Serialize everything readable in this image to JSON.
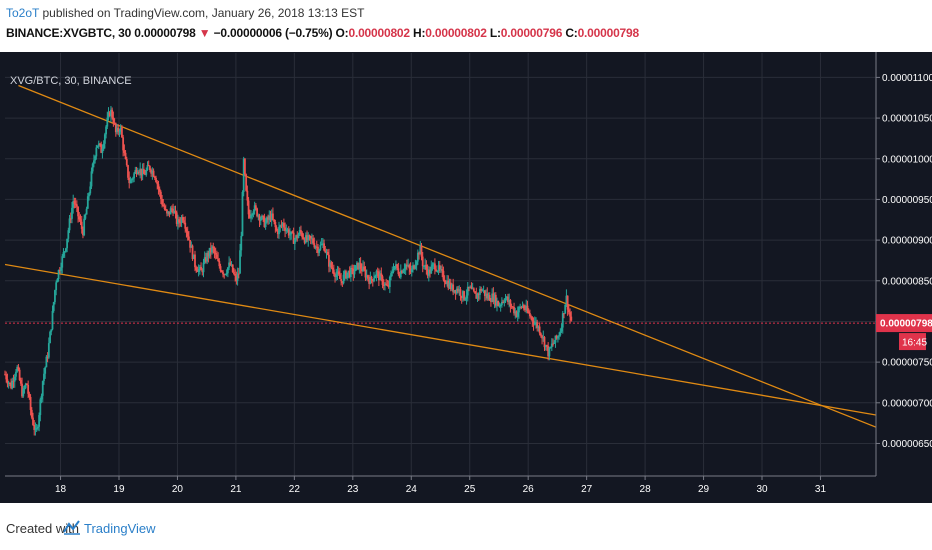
{
  "header": {
    "author": "To2oT",
    "published_text": " published on TradingView.com, January 26, 2018 13:13 EST",
    "symbol_line": "BINANCE:XVGBTC, 30",
    "last": "0.00000798",
    "arrow": "▼",
    "change": "−0.00000006 (−0.75%)",
    "o_label": "O:",
    "o_val": "0.00000802",
    "h_label": "H:",
    "h_val": "0.00000802",
    "l_label": "L:",
    "l_val": "0.00000796",
    "c_label": "C:",
    "c_val": "0.00000798"
  },
  "footer": {
    "created_with": "Created with",
    "brand": "TradingView"
  },
  "colors": {
    "background": "#131722",
    "grid": "#2a2e39",
    "up": "#26a69a",
    "down": "#ef5350",
    "trendline": "#e08a13",
    "price_line": "#e0334b"
  },
  "chart_data": {
    "type": "candlestick",
    "symbol_label": "XVG/BTC, 30, BINANCE",
    "x_tick_labels": [
      "18",
      "19",
      "20",
      "21",
      "22",
      "23",
      "24",
      "25",
      "26",
      "27",
      "28",
      "29",
      "30",
      "31"
    ],
    "y_tick_labels": [
      "0.00001100",
      "0.00001050",
      "0.00001000",
      "0.00000950",
      "0.00000900",
      "0.00000850",
      "0.00000750",
      "0.00000700",
      "0.00000650"
    ],
    "y_ticks": [
      1.1e-05,
      1.05e-05,
      1e-05,
      9.5e-06,
      9e-06,
      8.5e-06,
      7.5e-06,
      7e-06,
      6.5e-06
    ],
    "ylim": [
      6.1e-06,
      1.13e-05
    ],
    "xlim": [
      17.05,
      31.95
    ],
    "last_price_label": "0.00000798",
    "last_price": 7.98e-06,
    "countdown": "16:45",
    "grid": true,
    "price_path": [
      [
        17.05,
        7.35e-06
      ],
      [
        17.15,
        7.2e-06
      ],
      [
        17.25,
        7.45e-06
      ],
      [
        17.35,
        7.1e-06
      ],
      [
        17.42,
        7.25e-06
      ],
      [
        17.5,
        6.85e-06
      ],
      [
        17.58,
        6.6e-06
      ],
      [
        17.62,
        6.8e-06
      ],
      [
        17.7,
        7.3e-06
      ],
      [
        17.78,
        7.6e-06
      ],
      [
        17.85,
        8e-06
      ],
      [
        17.92,
        8.5e-06
      ],
      [
        18.0,
        8.7e-06
      ],
      [
        18.08,
        8.9e-06
      ],
      [
        18.15,
        9.2e-06
      ],
      [
        18.22,
        9.5e-06
      ],
      [
        18.3,
        9.3e-06
      ],
      [
        18.38,
        9.1e-06
      ],
      [
        18.45,
        9.4e-06
      ],
      [
        18.55,
        9.9e-06
      ],
      [
        18.62,
        1.02e-05
      ],
      [
        18.7,
        1.01e-05
      ],
      [
        18.78,
        1.04e-05
      ],
      [
        18.85,
        1.06e-05
      ],
      [
        18.9,
        1.05e-05
      ],
      [
        18.95,
        1.03e-05
      ],
      [
        19.02,
        1.04e-05
      ],
      [
        19.1,
        1e-05
      ],
      [
        19.18,
        9.7e-06
      ],
      [
        19.25,
        9.8e-06
      ],
      [
        19.32,
        9.9e-06
      ],
      [
        19.42,
        9.8e-06
      ],
      [
        19.52,
        9.9e-06
      ],
      [
        19.62,
        9.8e-06
      ],
      [
        19.72,
        9.5e-06
      ],
      [
        19.82,
        9.3e-06
      ],
      [
        19.92,
        9.4e-06
      ],
      [
        20.0,
        9.2e-06
      ],
      [
        20.1,
        9.3e-06
      ],
      [
        20.2,
        9e-06
      ],
      [
        20.3,
        8.7e-06
      ],
      [
        20.4,
        8.6e-06
      ],
      [
        20.5,
        8.8e-06
      ],
      [
        20.6,
        8.9e-06
      ],
      [
        20.7,
        8.7e-06
      ],
      [
        20.8,
        8.6e-06
      ],
      [
        20.9,
        8.7e-06
      ],
      [
        21.0,
        8.5e-06
      ],
      [
        21.05,
        8.6e-06
      ],
      [
        21.1,
        9.2e-06
      ],
      [
        21.13,
        1e-05
      ],
      [
        21.17,
        9.6e-06
      ],
      [
        21.22,
        9.3e-06
      ],
      [
        21.3,
        9.4e-06
      ],
      [
        21.4,
        9.3e-06
      ],
      [
        21.5,
        9.2e-06
      ],
      [
        21.6,
        9.3e-06
      ],
      [
        21.7,
        9.1e-06
      ],
      [
        21.8,
        9.2e-06
      ],
      [
        21.9,
        9.1e-06
      ],
      [
        22.0,
        9e-06
      ],
      [
        22.1,
        9.1e-06
      ],
      [
        22.2,
        9e-06
      ],
      [
        22.3,
        9e-06
      ],
      [
        22.4,
        8.9e-06
      ],
      [
        22.5,
        8.95e-06
      ],
      [
        22.6,
        8.7e-06
      ],
      [
        22.7,
        8.6e-06
      ],
      [
        22.8,
        8.5e-06
      ],
      [
        22.9,
        8.6e-06
      ],
      [
        23.0,
        8.6e-06
      ],
      [
        23.1,
        8.7e-06
      ],
      [
        23.2,
        8.6e-06
      ],
      [
        23.3,
        8.5e-06
      ],
      [
        23.4,
        8.6e-06
      ],
      [
        23.5,
        8.5e-06
      ],
      [
        23.6,
        8.4e-06
      ],
      [
        23.7,
        8.7e-06
      ],
      [
        23.8,
        8.6e-06
      ],
      [
        23.9,
        8.7e-06
      ],
      [
        24.0,
        8.6e-06
      ],
      [
        24.1,
        8.8e-06
      ],
      [
        24.15,
        8.9e-06
      ],
      [
        24.2,
        8.7e-06
      ],
      [
        24.3,
        8.6e-06
      ],
      [
        24.4,
        8.7e-06
      ],
      [
        24.5,
        8.6e-06
      ],
      [
        24.6,
        8.5e-06
      ],
      [
        24.7,
        8.4e-06
      ],
      [
        24.8,
        8.4e-06
      ],
      [
        24.9,
        8.3e-06
      ],
      [
        25.0,
        8.4e-06
      ],
      [
        25.1,
        8.3e-06
      ],
      [
        25.2,
        8.4e-06
      ],
      [
        25.3,
        8.3e-06
      ],
      [
        25.4,
        8.3e-06
      ],
      [
        25.5,
        8.2e-06
      ],
      [
        25.6,
        8.3e-06
      ],
      [
        25.7,
        8.2e-06
      ],
      [
        25.8,
        8.1e-06
      ],
      [
        25.9,
        8.2e-06
      ],
      [
        26.0,
        8.1e-06
      ],
      [
        26.1,
        8e-06
      ],
      [
        26.2,
        7.9e-06
      ],
      [
        26.3,
        7.7e-06
      ],
      [
        26.35,
        7.6e-06
      ],
      [
        26.4,
        7.7e-06
      ],
      [
        26.5,
        7.8e-06
      ],
      [
        26.55,
        7.9e-06
      ],
      [
        26.6,
        8.1e-06
      ],
      [
        26.65,
        8.3e-06
      ],
      [
        26.7,
        8.1e-06
      ],
      [
        26.75,
        7.98e-06
      ]
    ],
    "trendlines": [
      {
        "name": "upper",
        "start": [
          17.28,
          1.09e-05
        ],
        "end": [
          31.95,
          6.7e-06
        ]
      },
      {
        "name": "lower",
        "start": [
          17.05,
          8.7e-06
        ],
        "end": [
          31.95,
          6.85e-06
        ]
      }
    ]
  }
}
